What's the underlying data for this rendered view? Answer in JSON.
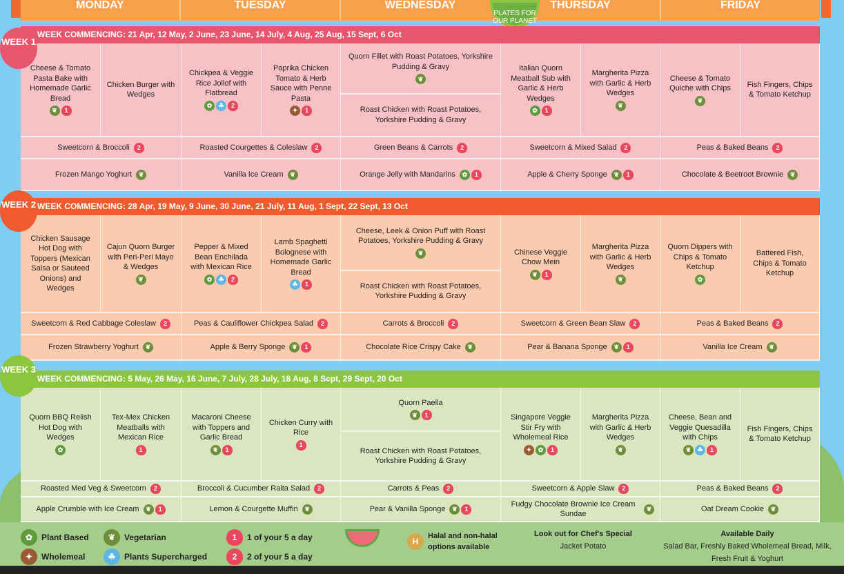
{
  "days": [
    "MONDAY",
    "TUESDAY",
    "WEDNESDAY",
    "THURSDAY",
    "FRIDAY"
  ],
  "logo_text": "PLATES FOR OUR PLANET",
  "colors": {
    "sky": "#7fcdf0",
    "days_bar": "#f8a04c",
    "week1_header": "#e8566e",
    "week1_cells": "#f7c1c6",
    "week2_header": "#ef5b2e",
    "week2_cells": "#fbcbb0",
    "week3_header": "#8cc63f",
    "week3_cells": "#dbe6c0",
    "legend_bg": "#a4cd8b"
  },
  "weeks": [
    {
      "badge": "WEEK 1",
      "header": "WEEK COMMENCING: 21 Apr, 12 May, 2 June, 23 June, 14 July, 4 Aug, 25 Aug, 15 Sept, 6 Oct",
      "mains": [
        {
          "name": "Cheese & Tomato Pasta Bake with Homemade Garlic Bread",
          "icons": [
            "veg",
            "five1"
          ]
        },
        {
          "name": "Chicken Burger with Wedges",
          "icons": []
        },
        {
          "name": "Chickpea & Veggie Rice Jollof with Flatbread",
          "icons": [
            "plant",
            "super",
            "five2"
          ]
        },
        {
          "name": "Paprika Chicken Tomato & Herb Sauce with Penne Pasta",
          "icons": [
            "whole",
            "five1"
          ]
        },
        {
          "name": "Quorn Fillet with Roast Potatoes, Yorkshire Pudding & Gravy",
          "icons": [
            "veg"
          ]
        },
        {
          "name": "Roast Chicken with Roast Potatoes, Yorkshire Pudding & Gravy",
          "icons": []
        },
        {
          "name": "Italian Quorn Meatball Sub with Garlic & Herb Wedges",
          "icons": [
            "plant",
            "five1"
          ]
        },
        {
          "name": "Margherita Pizza with Garlic & Herb Wedges",
          "icons": [
            "veg"
          ]
        },
        {
          "name": "Cheese & Tomato Quiche with Chips",
          "icons": [
            "veg"
          ]
        },
        {
          "name": "Fish Fingers, Chips & Tomato Ketchup",
          "icons": []
        }
      ],
      "sides": [
        {
          "name": "Sweetcorn & Broccoli",
          "icons": [
            "five2"
          ]
        },
        {
          "name": "Roasted Courgettes & Coleslaw",
          "icons": [
            "five2"
          ]
        },
        {
          "name": "Green Beans & Carrots",
          "icons": [
            "five2"
          ]
        },
        {
          "name": "Sweetcorn & Mixed Salad",
          "icons": [
            "five2"
          ]
        },
        {
          "name": "Peas & Baked Beans",
          "icons": [
            "five2"
          ]
        }
      ],
      "desserts": [
        {
          "name": "Frozen Mango Yoghurt",
          "icons": [
            "veg"
          ]
        },
        {
          "name": "Vanilla Ice Cream",
          "icons": [
            "veg"
          ]
        },
        {
          "name": "Orange Jelly with Mandarins",
          "icons": [
            "plant",
            "five1"
          ]
        },
        {
          "name": "Apple & Cherry Sponge",
          "icons": [
            "veg",
            "five1"
          ]
        },
        {
          "name": "Chocolate & Beetroot Brownie",
          "icons": [
            "veg"
          ]
        }
      ]
    },
    {
      "badge": "WEEK 2",
      "header": "WEEK COMMENCING: 28 Apr, 19 May, 9 June, 30 June, 21 July, 11 Aug, 1 Sept, 22 Sept, 13 Oct",
      "mains": [
        {
          "name": "Chicken Sausage Hot Dog with Toppers (Mexican Salsa or Sauteed Onions) and Wedges",
          "icons": []
        },
        {
          "name": "Cajun Quorn Burger with Peri-Peri Mayo & Wedges",
          "icons": [
            "veg"
          ]
        },
        {
          "name": "Pepper & Mixed Bean Enchilada with Mexican Rice",
          "icons": [
            "plant",
            "super",
            "five2"
          ]
        },
        {
          "name": "Lamb Spaghetti Bolognese with Homemade Garlic Bread",
          "icons": [
            "super",
            "five1"
          ]
        },
        {
          "name": "Cheese, Leek & Onion Puff with Roast Potatoes, Yorkshire Pudding & Gravy",
          "icons": [
            "veg"
          ]
        },
        {
          "name": "Roast Chicken with Roast Potatoes, Yorkshire Pudding & Gravy",
          "icons": []
        },
        {
          "name": "Chinese Veggie Chow Mein",
          "icons": [
            "veg",
            "five1"
          ]
        },
        {
          "name": "Margherita Pizza with Garlic & Herb Wedges",
          "icons": [
            "veg"
          ]
        },
        {
          "name": "Quorn Dippers with Chips & Tomato Ketchup",
          "icons": [
            "plant"
          ]
        },
        {
          "name": "Battered Fish, Chips & Tomato Ketchup",
          "icons": []
        }
      ],
      "sides": [
        {
          "name": "Sweetcorn & Red Cabbage Coleslaw",
          "icons": [
            "five2"
          ]
        },
        {
          "name": "Peas & Cauliflower Chickpea Salad",
          "icons": [
            "five2"
          ]
        },
        {
          "name": "Carrots & Broccoli",
          "icons": [
            "five2"
          ]
        },
        {
          "name": "Sweetcorn & Green Bean Slaw",
          "icons": [
            "five2"
          ]
        },
        {
          "name": "Peas & Baked Beans",
          "icons": [
            "five2"
          ]
        }
      ],
      "desserts": [
        {
          "name": "Frozen Strawberry Yoghurt",
          "icons": [
            "veg"
          ]
        },
        {
          "name": "Apple & Berry Sponge",
          "icons": [
            "veg",
            "five1"
          ]
        },
        {
          "name": "Chocolate Rice Crispy Cake",
          "icons": [
            "veg"
          ]
        },
        {
          "name": "Pear & Banana Sponge",
          "icons": [
            "veg",
            "five1"
          ]
        },
        {
          "name": "Vanilla Ice Cream",
          "icons": [
            "veg"
          ]
        }
      ]
    },
    {
      "badge": "WEEK 3",
      "header": "WEEK COMMENCING: 5 May, 26 May, 16 June, 7 July, 28 July, 18 Aug, 8 Sept, 29 Sept, 20 Oct",
      "mains": [
        {
          "name": "Quorn BBQ Relish Hot Dog with Wedges",
          "icons": [
            "plant"
          ]
        },
        {
          "name": "Tex-Mex Chicken Meatballs with Mexican Rice",
          "icons": [
            "five1"
          ]
        },
        {
          "name": "Macaroni Cheese with Toppers and Garlic Bread",
          "icons": [
            "veg",
            "five1"
          ]
        },
        {
          "name": "Chicken Curry with Rice",
          "icons": [
            "five1"
          ]
        },
        {
          "name": "Quorn Paella",
          "icons": [
            "veg",
            "five1"
          ]
        },
        {
          "name": "Roast Chicken with Roast Potatoes, Yorkshire Pudding & Gravy",
          "icons": []
        },
        {
          "name": "Singapore Veggie Stir Fry with Wholemeal Rice",
          "icons": [
            "whole",
            "plant",
            "five1"
          ]
        },
        {
          "name": "Margherita Pizza with Garlic & Herb Wedges",
          "icons": [
            "veg"
          ]
        },
        {
          "name": "Cheese, Bean and Veggie Quesadilla with Chips",
          "icons": [
            "veg",
            "super",
            "five1"
          ]
        },
        {
          "name": "Fish Fingers, Chips & Tomato Ketchup",
          "icons": []
        }
      ],
      "sides": [
        {
          "name": "Roasted Med Veg & Sweetcorn",
          "icons": [
            "five2"
          ]
        },
        {
          "name": "Broccoli & Cucumber Raita Salad",
          "icons": [
            "five2"
          ]
        },
        {
          "name": "Carrots & Peas",
          "icons": [
            "five2"
          ]
        },
        {
          "name": "Sweetcorn & Apple Slaw",
          "icons": [
            "five2"
          ]
        },
        {
          "name": "Peas & Baked Beans",
          "icons": [
            "five2"
          ]
        }
      ],
      "desserts": [
        {
          "name": "Apple Crumble with Ice Cream",
          "icons": [
            "veg",
            "five1"
          ]
        },
        {
          "name": "Lemon & Courgette Muffin",
          "icons": [
            "veg"
          ]
        },
        {
          "name": "Pear & Vanilla Sponge",
          "icons": [
            "veg",
            "five1"
          ]
        },
        {
          "name": "Fudgy Chocolate Brownie Ice Cream Sundae",
          "icons": [
            "veg"
          ]
        },
        {
          "name": "Oat Dream Cookie",
          "icons": [
            "veg"
          ]
        }
      ]
    }
  ],
  "legend": {
    "plant": "Plant Based",
    "veg": "Vegetarian",
    "whole": "Wholemeal",
    "super": "Plants Supercharged",
    "five1": "1 of your 5 a day",
    "five2": "2 of your 5 a day",
    "halal": "Halal and non-halal options available",
    "chef_title": "Look out for Chef's Special",
    "chef_item": "Jacket Potato",
    "daily_title": "Available Daily",
    "daily_items": "Salad Bar, Freshly Baked Wholemeal Bread, Milk, Fresh Fruit & Yoghurt"
  },
  "icon_names": {
    "veg": "vegetarian-icon",
    "plant": "plant-based-icon",
    "whole": "wholemeal-icon",
    "super": "plants-supercharged-icon",
    "five1": "one-of-five-icon",
    "five2": "two-of-five-icon"
  }
}
